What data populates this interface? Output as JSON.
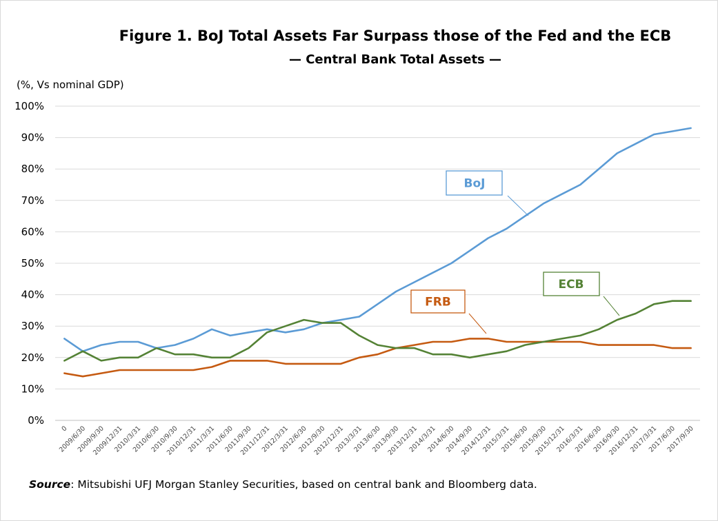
{
  "title": "Figure 1. BoJ Total Assets Far Surpass those of the Fed and the ECB",
  "subtitle": "— Central Bank Total Assets —",
  "unit_label": "(%, Vs nominal GDP)",
  "source_label": "Source",
  "source_text": ": Mitsubishi UFJ Morgan Stanley Securities, based on central bank and Bloomberg data.",
  "chart_data": {
    "type": "line",
    "title": "Figure 1. BoJ Total Assets Far Surpass those of the Fed and the ECB",
    "subtitle": "— Central Bank Total Assets —",
    "ylabel": "(%, Vs nominal GDP)",
    "xlabel": "",
    "ylim": [
      0,
      100
    ],
    "yticks": [
      "0%",
      "10%",
      "20%",
      "30%",
      "40%",
      "50%",
      "60%",
      "70%",
      "80%",
      "90%",
      "100%"
    ],
    "grid": true,
    "legend": "callouts",
    "categories": [
      "0",
      "2009/6/30",
      "2009/9/30",
      "2009/12/31",
      "2010/3/31",
      "2010/6/30",
      "2010/9/30",
      "2010/12/31",
      "2011/3/31",
      "2011/6/30",
      "2011/9/30",
      "2011/12/31",
      "2012/3/31",
      "2012/6/30",
      "2012/9/30",
      "2012/12/31",
      "2013/3/31",
      "2013/6/30",
      "2013/9/30",
      "2013/12/31",
      "2014/3/31",
      "2014/6/30",
      "2014/9/30",
      "2014/12/31",
      "2015/3/31",
      "2015/6/30",
      "2015/9/30",
      "2015/12/31",
      "2016/3/31",
      "2016/6/30",
      "2016/9/30",
      "2016/12/31",
      "2017/3/31",
      "2017/6/30",
      "2017/9/30"
    ],
    "series": [
      {
        "name": "BoJ",
        "color": "#5b9bd5",
        "values": [
          26,
          22,
          24,
          25,
          25,
          23,
          24,
          26,
          29,
          27,
          28,
          29,
          28,
          29,
          31,
          32,
          33,
          37,
          41,
          44,
          47,
          50,
          54,
          58,
          61,
          65,
          69,
          72,
          75,
          80,
          85,
          88,
          91,
          92,
          93
        ]
      },
      {
        "name": "FRB",
        "color": "#c55a11",
        "values": [
          15,
          14,
          15,
          16,
          16,
          16,
          16,
          16,
          17,
          19,
          19,
          19,
          18,
          18,
          18,
          18,
          20,
          21,
          23,
          24,
          25,
          25,
          26,
          26,
          25,
          25,
          25,
          25,
          25,
          24,
          24,
          24,
          24,
          23,
          23
        ]
      },
      {
        "name": "ECB",
        "color": "#548235",
        "values": [
          19,
          22,
          19,
          20,
          20,
          23,
          21,
          21,
          20,
          20,
          23,
          28,
          30,
          32,
          31,
          31,
          27,
          24,
          23,
          23,
          21,
          21,
          20,
          21,
          22,
          24,
          25,
          26,
          27,
          29,
          32,
          34,
          37,
          38,
          38
        ]
      }
    ]
  }
}
